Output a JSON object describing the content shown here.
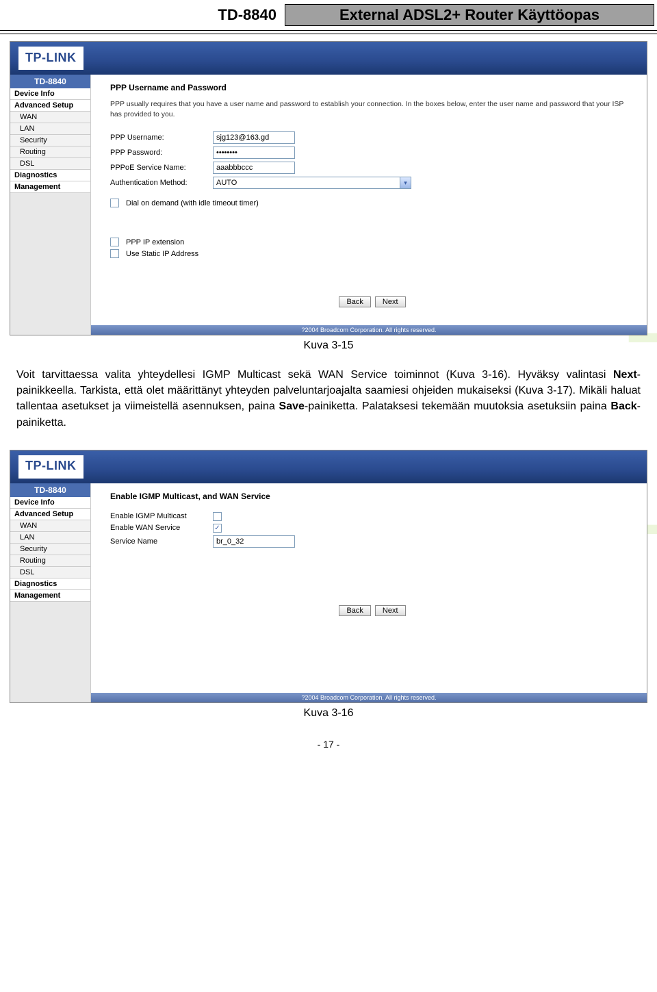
{
  "header": {
    "model": "TD-8840",
    "title": "External ADSL2+ Router Käyttöopas"
  },
  "watermark_right": "",
  "sidebar": {
    "model": "TD-8840",
    "items": [
      "Device Info",
      "Advanced Setup"
    ],
    "subs": [
      "WAN",
      "LAN",
      "Security",
      "Routing",
      "DSL"
    ],
    "items2": [
      "Diagnostics",
      "Management"
    ]
  },
  "screen1": {
    "logo": "TP-LINK",
    "heading": "PPP Username and Password",
    "desc": "PPP usually requires that you have a user name and password to establish your connection. In the boxes below, enter the user name and password that your ISP has provided to you.",
    "labels": {
      "user": "PPP Username:",
      "pass": "PPP Password:",
      "svc": "PPPoE Service Name:",
      "auth": "Authentication Method:"
    },
    "values": {
      "user": "sjg123@163.gd",
      "pass": "••••••••",
      "svc": "aaabbbccc",
      "auth": "AUTO"
    },
    "options": {
      "dod": "Dial on demand (with idle timeout timer)",
      "ipext": "PPP IP extension",
      "static": "Use Static IP Address"
    },
    "buttons": {
      "back": "Back",
      "next": "Next"
    },
    "footer": "?2004 Broadcom Corporation. All rights reserved."
  },
  "caption1": "Kuva 3-15",
  "guide": "Voit tarvittaessa valita yhteydellesi IGMP Multicast sekä WAN Service toiminnot (Kuva 3-16). Hyväksy valintasi <b>Next</b>-painikkeella. Tarkista, että olet määrittänyt yhteyden palveluntarjoajalta saamiesi ohjeiden mukaiseksi (Kuva 3-17). Mikäli haluat tallentaa asetukset ja viimeistellä asennuksen, paina <b>Save</b>-painiketta. Palataksesi tekemään muutoksia asetuksiin paina <b>Back</b>-painiketta.",
  "screen2": {
    "heading": "Enable IGMP Multicast, and WAN Service",
    "labels": {
      "igmp": "Enable IGMP Multicast",
      "wan": "Enable WAN Service",
      "svc": "Service Name"
    },
    "values": {
      "svc": "br_0_32"
    },
    "buttons": {
      "back": "Back",
      "next": "Next"
    },
    "footer": "?2004 Broadcom Corporation. All rights reserved."
  },
  "caption2": "Kuva 3-16",
  "pagenum": "- 17 -",
  "colors": {
    "header_box_bg": "#a0a0a0",
    "gradient_top": "#3a5fa8",
    "gradient_bottom": "#1c3870",
    "watermark": "rgba(180,220,110,0.25)"
  }
}
